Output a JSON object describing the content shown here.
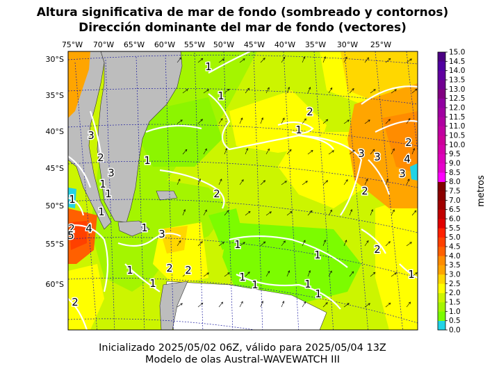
{
  "title_line1": "Altura significativa de mar de fondo (sombreado y contornos)",
  "title_line2": "Dirección dominante del mar de fondo (vectores)",
  "footer_line1": "Inicializado 2025/05/02 06Z, válido para 2025/05/04 13Z",
  "footer_line2": "Modelo de olas Austral-WAVEWATCH III",
  "lon_labels": [
    "75°W",
    "70°W",
    "65°W",
    "60°W",
    "55°W",
    "50°W",
    "45°W",
    "40°W",
    "35°W",
    "30°W",
    "25°W"
  ],
  "lat_labels": [
    "30°S",
    "35°S",
    "40°S",
    "45°S",
    "50°S",
    "55°S",
    "60°S"
  ],
  "colorbar": {
    "unit_label": "metros",
    "ticks": [
      "0.0",
      "0.5",
      "1.0",
      "1.5",
      "2.0",
      "2.5",
      "3.0",
      "3.5",
      "4.0",
      "4.5",
      "5.0",
      "5.5",
      "6.0",
      "6.5",
      "7.0",
      "7.5",
      "8.0",
      "8.5",
      "9.0",
      "9.5",
      "10.0",
      "10.5",
      "11.0",
      "11.5",
      "12.0",
      "12.5",
      "13.0",
      "13.5",
      "14.0",
      "14.5",
      "15.0"
    ],
    "colors": [
      "#22d3e6",
      "#7cfc00",
      "#a4f500",
      "#ccf500",
      "#ffff00",
      "#ffd700",
      "#ffa500",
      "#ff8c00",
      "#ff6000",
      "#ff4000",
      "#ff2000",
      "#e00000",
      "#c00000",
      "#a00000",
      "#8b0000",
      "#800000",
      "#ff00ff",
      "#e600cc",
      "#dd00bb",
      "#d400aa",
      "#cc0099",
      "#c000a0",
      "#b000a0",
      "#a000a0",
      "#9000a0",
      "#800080",
      "#700090",
      "#6000a0",
      "#5000a0",
      "#4b0082"
    ]
  },
  "contour_labels": [
    "1",
    "1",
    "2",
    "1",
    "3",
    "3",
    "3",
    "2",
    "4",
    "3",
    "2",
    "1",
    "2",
    "3",
    "1",
    "1",
    "2",
    "1",
    "1",
    "2",
    "4",
    "5",
    "1",
    "3",
    "2",
    "2",
    "1",
    "1",
    "1",
    "1",
    "1",
    "1",
    "2",
    "1",
    "1",
    "1",
    "2"
  ],
  "land_color": "#bdbdbd",
  "contour_color": "#ffffff"
}
